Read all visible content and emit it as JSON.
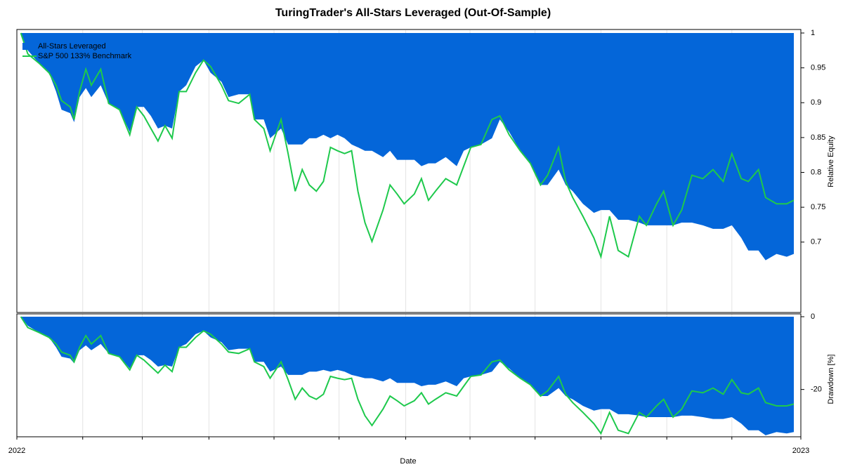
{
  "chart_data": [
    {
      "type": "area",
      "title": "TuringTrader's All-Stars Leveraged (Out-Of-Sample)",
      "y_label": "Relative Equity",
      "legend": "upper left",
      "xlim": [
        2022,
        2023
      ],
      "ylim": [
        0.6,
        1
      ],
      "yticks": [
        0.7,
        0.75,
        0.8,
        0.85,
        0.9,
        0.95,
        1
      ],
      "x": [
        2022.005,
        2022.014,
        2022.028,
        2022.041,
        2022.05,
        2022.057,
        2022.068,
        2022.073,
        2022.08,
        2022.088,
        2022.095,
        2022.107,
        2022.117,
        2022.131,
        2022.144,
        2022.153,
        2022.162,
        2022.171,
        2022.18,
        2022.189,
        2022.198,
        2022.207,
        2022.216,
        2022.228,
        2022.238,
        2022.247,
        2022.261,
        2022.27,
        2022.283,
        2022.297,
        2022.303,
        2022.315,
        2022.323,
        2022.337,
        2022.346,
        2022.355,
        2022.364,
        2022.373,
        2022.382,
        2022.391,
        2022.4,
        2022.409,
        2022.418,
        2022.427,
        2022.435,
        2022.444,
        2022.453,
        2022.467,
        2022.476,
        2022.485,
        2022.494,
        2022.507,
        2022.516,
        2022.525,
        2022.534,
        2022.547,
        2022.561,
        2022.57,
        2022.579,
        2022.592,
        2022.606,
        2022.616,
        2022.628,
        2022.642,
        2022.655,
        2022.668,
        2022.677,
        2022.691,
        2022.7,
        2022.709,
        2022.722,
        2022.736,
        2022.745,
        2022.756,
        2022.767,
        2022.78,
        2022.794,
        2022.803,
        2022.816,
        2022.825,
        2022.837,
        2022.848,
        2022.861,
        2022.875,
        2022.888,
        2022.901,
        2022.912,
        2022.924,
        2022.933,
        2022.946,
        2022.955,
        2022.969,
        2022.982,
        2022.991
      ],
      "series": [
        {
          "name": "All-Stars Leveraged",
          "color": "#0466d9",
          "style": "area",
          "values": [
            1,
            0.975,
            0.957,
            0.943,
            0.916,
            0.89,
            0.885,
            0.872,
            0.908,
            0.921,
            0.908,
            0.925,
            0.899,
            0.89,
            0.858,
            0.894,
            0.894,
            0.881,
            0.863,
            0.867,
            0.863,
            0.916,
            0.925,
            0.952,
            0.961,
            0.943,
            0.93,
            0.908,
            0.912,
            0.912,
            0.876,
            0.876,
            0.849,
            0.863,
            0.84,
            0.84,
            0.84,
            0.849,
            0.849,
            0.854,
            0.849,
            0.854,
            0.849,
            0.84,
            0.836,
            0.831,
            0.831,
            0.822,
            0.831,
            0.818,
            0.818,
            0.818,
            0.809,
            0.813,
            0.813,
            0.822,
            0.809,
            0.831,
            0.836,
            0.84,
            0.849,
            0.876,
            0.858,
            0.831,
            0.813,
            0.782,
            0.782,
            0.804,
            0.782,
            0.773,
            0.755,
            0.742,
            0.746,
            0.746,
            0.732,
            0.732,
            0.728,
            0.724,
            0.724,
            0.724,
            0.724,
            0.728,
            0.728,
            0.724,
            0.719,
            0.719,
            0.724,
            0.706,
            0.688,
            0.688,
            0.674,
            0.683,
            0.679,
            0.683
          ]
        },
        {
          "name": "S&P 500 133% Benchmark",
          "color": "#1ec94c",
          "style": "line",
          "values": [
            1,
            0.97,
            0.957,
            0.943,
            0.925,
            0.903,
            0.894,
            0.876,
            0.916,
            0.948,
            0.925,
            0.948,
            0.899,
            0.89,
            0.854,
            0.894,
            0.881,
            0.863,
            0.845,
            0.867,
            0.849,
            0.916,
            0.916,
            0.943,
            0.961,
            0.952,
            0.925,
            0.903,
            0.899,
            0.912,
            0.876,
            0.863,
            0.831,
            0.876,
            0.827,
            0.773,
            0.804,
            0.782,
            0.773,
            0.787,
            0.836,
            0.831,
            0.827,
            0.831,
            0.773,
            0.728,
            0.701,
            0.746,
            0.782,
            0.769,
            0.755,
            0.769,
            0.791,
            0.76,
            0.773,
            0.791,
            0.782,
            0.809,
            0.836,
            0.84,
            0.876,
            0.881,
            0.854,
            0.831,
            0.813,
            0.782,
            0.796,
            0.836,
            0.787,
            0.764,
            0.737,
            0.706,
            0.679,
            0.737,
            0.688,
            0.679,
            0.737,
            0.724,
            0.755,
            0.773,
            0.724,
            0.746,
            0.796,
            0.791,
            0.804,
            0.787,
            0.827,
            0.791,
            0.787,
            0.804,
            0.764,
            0.755,
            0.755,
            0.76
          ]
        }
      ]
    },
    {
      "type": "area",
      "x_label": "Date",
      "y_label": "Drawdown [%]",
      "xlim": [
        2022,
        2023
      ],
      "ylim": [
        -33,
        0
      ],
      "yticks": [
        -20,
        0
      ],
      "xticks": [
        2022,
        {
          "value": 2022.084,
          "label": null
        },
        {
          "value": 2022.16,
          "label": null
        },
        {
          "value": 2022.245,
          "label": null
        },
        {
          "value": 2022.328,
          "label": null
        },
        {
          "value": 2022.411,
          "label": null
        },
        {
          "value": 2022.496,
          "label": null
        },
        {
          "value": 2022.578,
          "label": null
        },
        {
          "value": 2022.661,
          "label": null
        },
        {
          "value": 2022.745,
          "label": null
        },
        {
          "value": 2022.829,
          "label": null
        },
        {
          "value": 2022.912,
          "label": null
        },
        2023
      ],
      "x": [
        2022.005,
        2022.014,
        2022.028,
        2022.041,
        2022.05,
        2022.057,
        2022.068,
        2022.073,
        2022.08,
        2022.088,
        2022.095,
        2022.107,
        2022.117,
        2022.131,
        2022.144,
        2022.153,
        2022.162,
        2022.171,
        2022.18,
        2022.189,
        2022.198,
        2022.207,
        2022.216,
        2022.228,
        2022.238,
        2022.247,
        2022.261,
        2022.27,
        2022.283,
        2022.297,
        2022.303,
        2022.315,
        2022.323,
        2022.337,
        2022.346,
        2022.355,
        2022.364,
        2022.373,
        2022.382,
        2022.391,
        2022.4,
        2022.409,
        2022.418,
        2022.427,
        2022.435,
        2022.444,
        2022.453,
        2022.467,
        2022.476,
        2022.485,
        2022.494,
        2022.507,
        2022.516,
        2022.525,
        2022.534,
        2022.547,
        2022.561,
        2022.57,
        2022.579,
        2022.592,
        2022.606,
        2022.616,
        2022.628,
        2022.642,
        2022.655,
        2022.668,
        2022.677,
        2022.691,
        2022.7,
        2022.709,
        2022.722,
        2022.736,
        2022.745,
        2022.756,
        2022.767,
        2022.78,
        2022.794,
        2022.803,
        2022.816,
        2022.825,
        2022.837,
        2022.848,
        2022.861,
        2022.875,
        2022.888,
        2022.901,
        2022.912,
        2022.924,
        2022.933,
        2022.946,
        2022.955,
        2022.969,
        2022.982,
        2022.991
      ],
      "series": [
        {
          "color": "#0466d9",
          "style": "area",
          "values": [
            0,
            -2.5,
            -4.3,
            -5.7,
            -8.4,
            -11,
            -11.5,
            -12.8,
            -9.2,
            -7.9,
            -9.2,
            -7.5,
            -10.1,
            -11,
            -14.2,
            -10.6,
            -10.6,
            -11.9,
            -13.7,
            -13.3,
            -13.7,
            -8.4,
            -7.5,
            -4.8,
            -3.9,
            -5.7,
            -7,
            -9.2,
            -8.8,
            -8.8,
            -12.4,
            -12.4,
            -15.1,
            -13.7,
            -16,
            -16,
            -16,
            -15.1,
            -15.1,
            -14.6,
            -15.1,
            -14.6,
            -15.1,
            -16,
            -16.4,
            -16.9,
            -16.9,
            -17.8,
            -16.9,
            -18.2,
            -18.2,
            -18.2,
            -19.1,
            -18.7,
            -18.7,
            -17.8,
            -19.1,
            -16.9,
            -16.4,
            -16,
            -15.1,
            -12.4,
            -14.2,
            -16.9,
            -18.7,
            -21.8,
            -21.8,
            -19.6,
            -21.8,
            -22.7,
            -24.5,
            -25.8,
            -25.4,
            -25.4,
            -26.8,
            -26.8,
            -27.2,
            -27.6,
            -27.6,
            -27.6,
            -27.6,
            -27.2,
            -27.2,
            -27.6,
            -28.1,
            -28.1,
            -27.6,
            -29.4,
            -31.2,
            -31.2,
            -32.6,
            -31.7,
            -32.1,
            -31.7
          ]
        },
        {
          "color": "#1ec94c",
          "style": "line",
          "values": [
            0,
            -3,
            -4.3,
            -5.7,
            -7.5,
            -9.7,
            -10.6,
            -12.4,
            -8.4,
            -5.2,
            -7.5,
            -5.2,
            -10.1,
            -11,
            -14.6,
            -10.6,
            -11.9,
            -13.7,
            -15.5,
            -13.3,
            -15.1,
            -8.4,
            -8.4,
            -5.7,
            -3.9,
            -4.8,
            -7.5,
            -9.7,
            -10.1,
            -8.8,
            -12.4,
            -13.7,
            -16.9,
            -12.4,
            -17.3,
            -22.7,
            -19.6,
            -21.8,
            -22.7,
            -21.3,
            -16.4,
            -16.9,
            -17.3,
            -16.9,
            -22.7,
            -27.2,
            -29.9,
            -25.4,
            -21.8,
            -23.1,
            -24.5,
            -23.1,
            -20.9,
            -24,
            -22.7,
            -20.9,
            -21.8,
            -19.1,
            -16.4,
            -16,
            -12.4,
            -11.9,
            -14.6,
            -16.9,
            -18.7,
            -21.8,
            -20.4,
            -16.4,
            -21.3,
            -23.6,
            -26.3,
            -29.4,
            -32.1,
            -26.3,
            -31.2,
            -32.1,
            -26.3,
            -27.6,
            -24.5,
            -22.7,
            -27.6,
            -25.4,
            -20.4,
            -20.9,
            -19.6,
            -21.3,
            -17.3,
            -20.9,
            -21.3,
            -19.6,
            -23.6,
            -24.5,
            -24.5,
            -24
          ]
        }
      ]
    }
  ]
}
